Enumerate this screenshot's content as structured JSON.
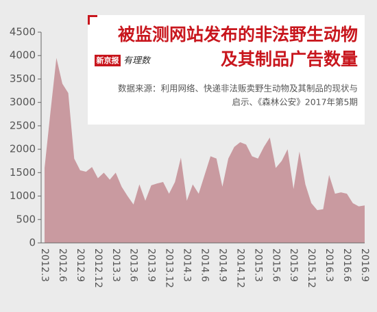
{
  "chart_data": {
    "type": "area",
    "title": [
      "被监测网站发布的非法野生动物",
      "及其制品广告数量"
    ],
    "source": [
      "数据来源：利用网络、快递非法贩卖野生动物及其制品的现状与",
      "启示、《森林公安》2017年第5期"
    ],
    "brand": [
      "新京报",
      "有理数"
    ],
    "color": "#c99aa0",
    "categories": [
      "2012.3",
      null,
      null,
      "2012.6",
      null,
      null,
      "2012.9",
      null,
      null,
      "2012.12",
      null,
      null,
      "2013.3",
      null,
      null,
      "2013.6",
      null,
      null,
      "2013.9",
      null,
      null,
      "2013.12",
      null,
      null,
      "2014.3",
      null,
      null,
      "2014.6",
      null,
      null,
      "2014.9",
      null,
      null,
      "2014.12",
      null,
      null,
      "2015.3",
      null,
      null,
      "2015.6",
      null,
      null,
      "2015.9",
      null,
      null,
      "2015.12",
      null,
      null,
      "2016.3",
      null,
      null,
      "2016.6",
      null,
      null,
      "2016.9"
    ],
    "values": [
      1600,
      2800,
      3950,
      3400,
      3200,
      1800,
      1550,
      1520,
      1620,
      1380,
      1500,
      1350,
      1500,
      1200,
      1000,
      820,
      1250,
      900,
      1230,
      1270,
      1300,
      1050,
      1300,
      1820,
      900,
      1250,
      1050,
      1450,
      1850,
      1800,
      1200,
      1800,
      2050,
      2150,
      2100,
      1850,
      1800,
      2050,
      2250,
      1600,
      1750,
      2000,
      1150,
      1950,
      1250,
      850,
      700,
      720,
      1450,
      1050,
      1080,
      1050,
      850,
      780,
      800
    ],
    "ylim": [
      0,
      4500
    ],
    "yticks": [
      0,
      500,
      1000,
      1500,
      2000,
      2500,
      3000,
      3500,
      4000,
      4500
    ]
  }
}
